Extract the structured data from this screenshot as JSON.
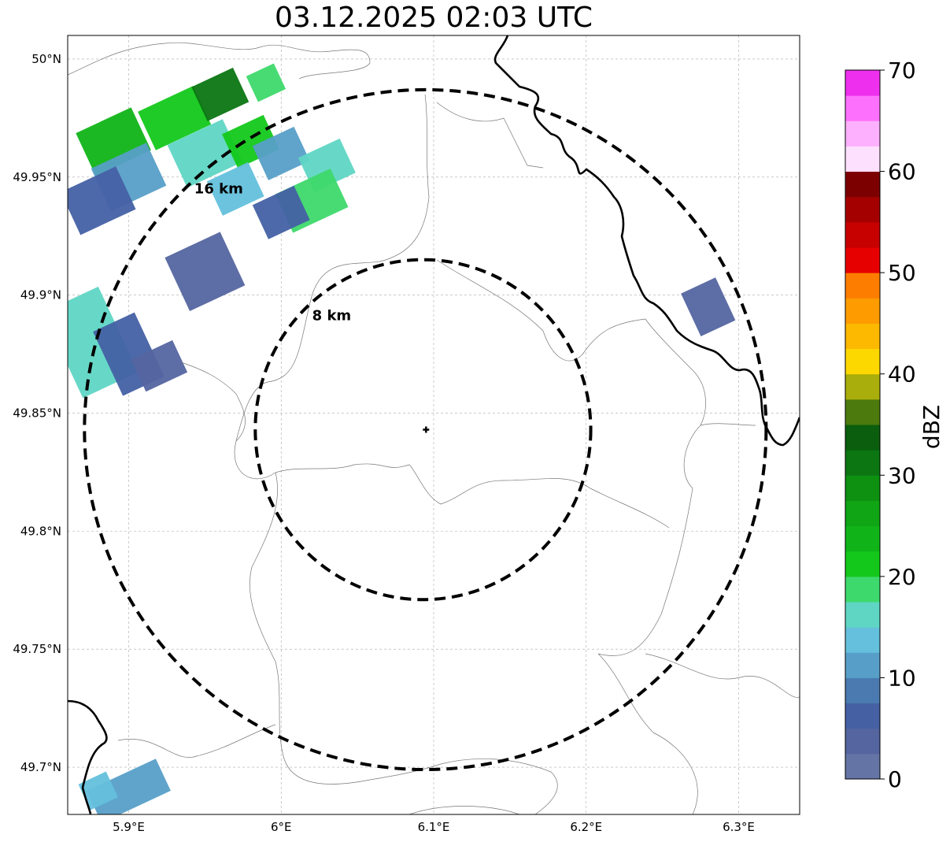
{
  "title": "03.12.2025 02:03 UTC",
  "map": {
    "lon_range": [
      5.86,
      6.34
    ],
    "lat_range": [
      49.68,
      50.01
    ],
    "center": {
      "lon": 6.095,
      "lat": 49.843
    },
    "rings": [
      {
        "label": "8 km",
        "lat_extent": [
          49.771,
          49.915
        ],
        "lon_extent": [
          5.983,
          6.203
        ]
      },
      {
        "label": "16 km",
        "lat_extent": [
          49.699,
          49.987
        ],
        "lon_extent": [
          5.871,
          6.318
        ]
      }
    ],
    "x_ticks": [
      {
        "value": 5.9,
        "label": "5.9°E"
      },
      {
        "value": 6.0,
        "label": "6°E"
      },
      {
        "value": 6.1,
        "label": "6.1°E"
      },
      {
        "value": 6.2,
        "label": "6.2°E"
      },
      {
        "value": 6.3,
        "label": "6.3°E"
      }
    ],
    "y_ticks": [
      {
        "value": 50.0,
        "label": "50°N"
      },
      {
        "value": 49.95,
        "label": "49.95°N"
      },
      {
        "value": 49.9,
        "label": "49.9°N"
      },
      {
        "value": 49.85,
        "label": "49.85°N"
      },
      {
        "value": 49.8,
        "label": "49.8°N"
      },
      {
        "value": 49.75,
        "label": "49.75°N"
      },
      {
        "value": 49.7,
        "label": "49.7°N"
      }
    ],
    "grid": true
  },
  "colorbar": {
    "unit": "dBZ",
    "min": 0,
    "max": 70,
    "ticks": [
      0,
      10,
      20,
      30,
      40,
      50,
      60,
      70
    ],
    "colors": [
      "#6474a4",
      "#5465a0",
      "#4561a4",
      "#4a7ab0",
      "#579fc8",
      "#64c0dc",
      "#5fd6c4",
      "#3ed96c",
      "#13c81a",
      "#10b418",
      "#0fa514",
      "#0e9011",
      "#0b7612",
      "#0a5e0d",
      "#4c7a0d",
      "#aaae0c",
      "#fdd800",
      "#fdb800",
      "#fd9b00",
      "#fd7d00",
      "#e60000",
      "#c70000",
      "#a50000",
      "#7c0000",
      "#fde0fd",
      "#fdb0fd",
      "#fd70fd",
      "#ee30ee"
    ]
  },
  "echoes": [
    {
      "lon": 5.93,
      "lat": 49.975,
      "w": 0.04,
      "h": 0.018,
      "dbz": 22
    },
    {
      "lon": 5.96,
      "lat": 49.985,
      "w": 0.03,
      "h": 0.016,
      "dbz": 30
    },
    {
      "lon": 5.99,
      "lat": 49.99,
      "w": 0.02,
      "h": 0.012,
      "dbz": 18
    },
    {
      "lon": 5.89,
      "lat": 49.965,
      "w": 0.04,
      "h": 0.02,
      "dbz": 24
    },
    {
      "lon": 5.9,
      "lat": 49.95,
      "w": 0.04,
      "h": 0.02,
      "dbz": 12
    },
    {
      "lon": 5.88,
      "lat": 49.94,
      "w": 0.04,
      "h": 0.02,
      "dbz": 5
    },
    {
      "lon": 5.95,
      "lat": 49.96,
      "w": 0.04,
      "h": 0.02,
      "dbz": 16
    },
    {
      "lon": 5.98,
      "lat": 49.965,
      "w": 0.03,
      "h": 0.016,
      "dbz": 20
    },
    {
      "lon": 6.0,
      "lat": 49.96,
      "w": 0.03,
      "h": 0.016,
      "dbz": 10
    },
    {
      "lon": 6.03,
      "lat": 49.955,
      "w": 0.03,
      "h": 0.016,
      "dbz": 15
    },
    {
      "lon": 6.02,
      "lat": 49.94,
      "w": 0.04,
      "h": 0.018,
      "dbz": 18
    },
    {
      "lon": 6.0,
      "lat": 49.935,
      "w": 0.03,
      "h": 0.016,
      "dbz": 6
    },
    {
      "lon": 5.97,
      "lat": 49.945,
      "w": 0.03,
      "h": 0.016,
      "dbz": 14
    },
    {
      "lon": 5.95,
      "lat": 49.91,
      "w": 0.04,
      "h": 0.025,
      "dbz": 4
    },
    {
      "lon": 5.875,
      "lat": 49.88,
      "w": 0.04,
      "h": 0.04,
      "dbz": 15
    },
    {
      "lon": 5.9,
      "lat": 49.875,
      "w": 0.03,
      "h": 0.03,
      "dbz": 6
    },
    {
      "lon": 5.92,
      "lat": 49.87,
      "w": 0.03,
      "h": 0.015,
      "dbz": 3
    },
    {
      "lon": 6.28,
      "lat": 49.895,
      "w": 0.025,
      "h": 0.02,
      "dbz": 4
    },
    {
      "lon": 5.9,
      "lat": 49.69,
      "w": 0.05,
      "h": 0.015,
      "dbz": 11
    },
    {
      "lon": 5.88,
      "lat": 49.69,
      "w": 0.02,
      "h": 0.012,
      "dbz": 13
    }
  ]
}
